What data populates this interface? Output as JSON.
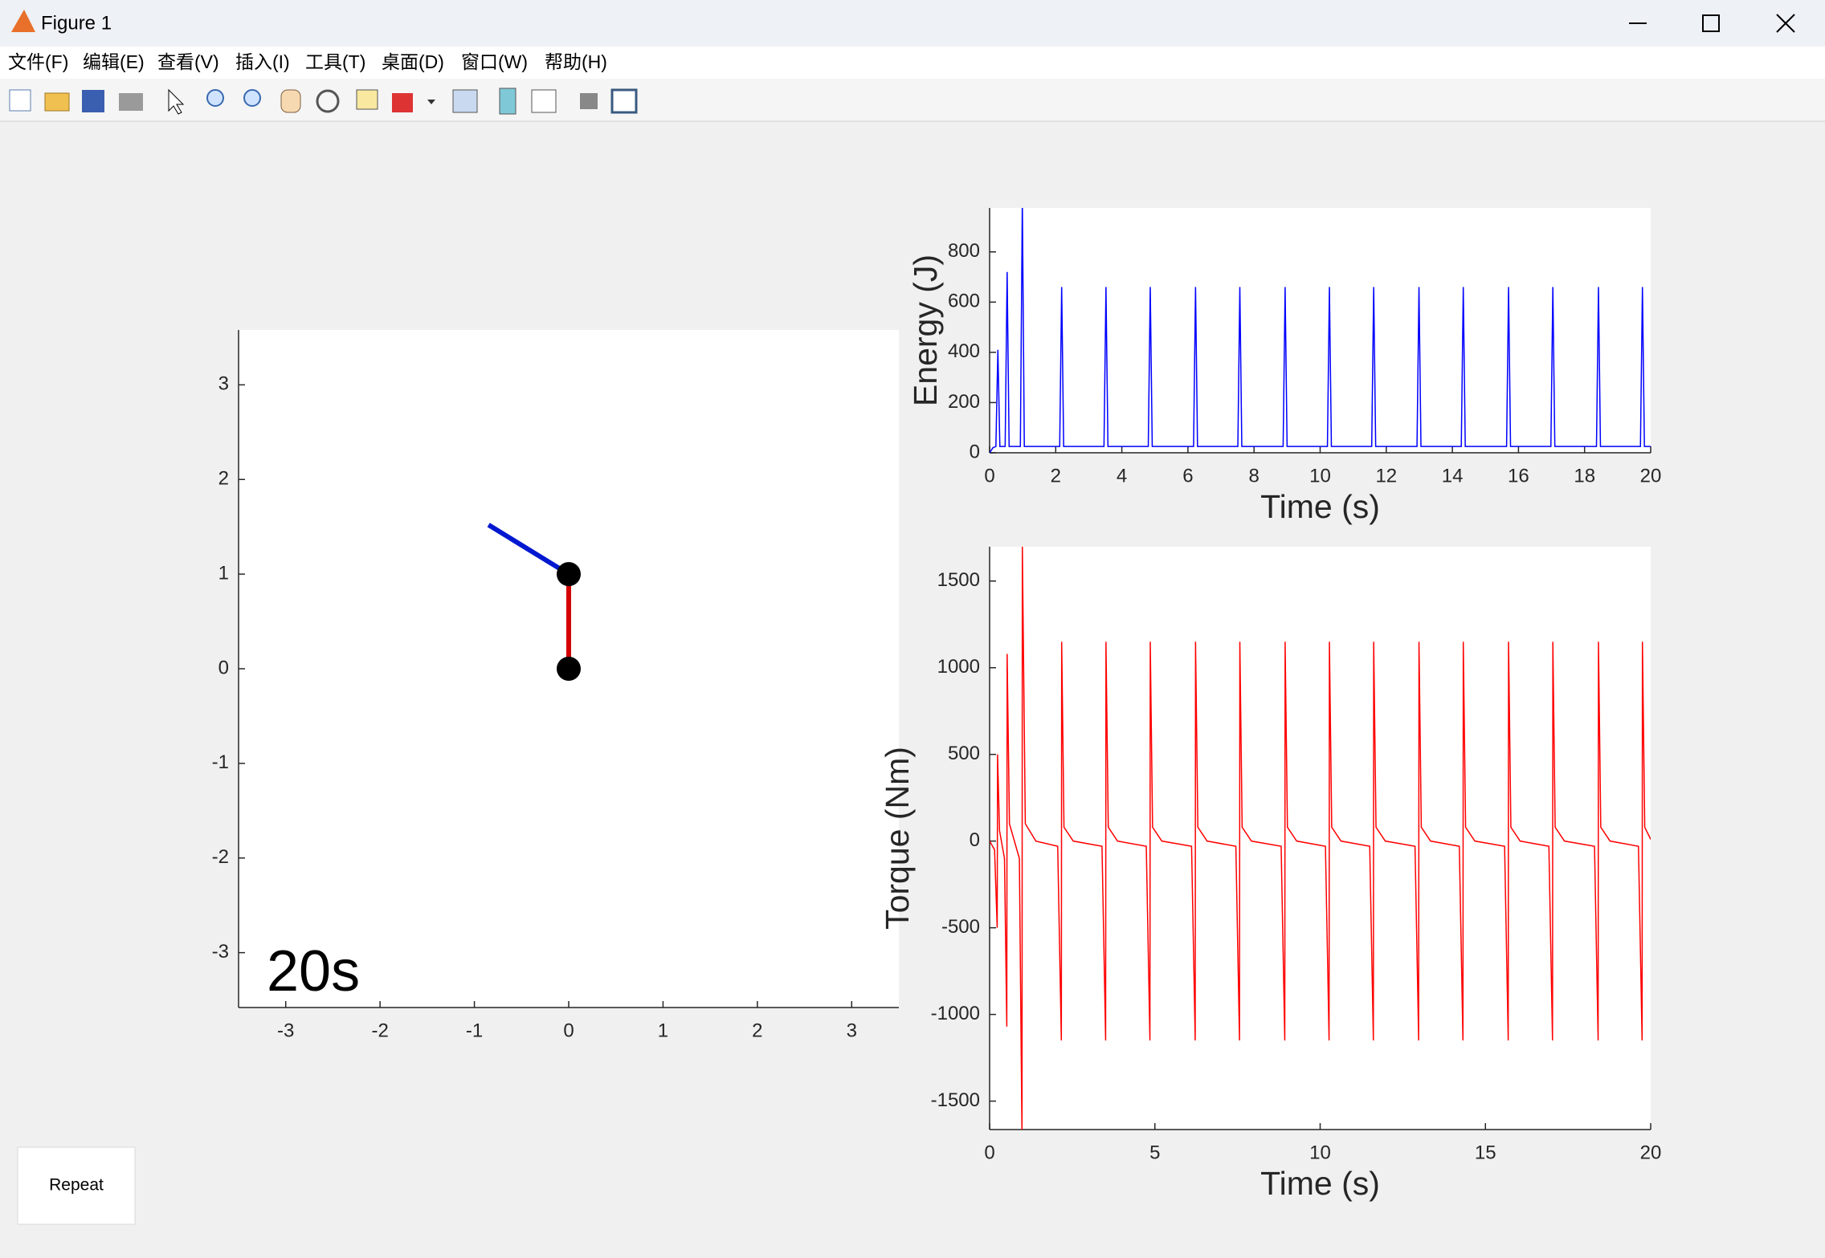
{
  "window": {
    "title": "Figure 1"
  },
  "menu": [
    "文件(F)",
    "编辑(E)",
    "查看(V)",
    "插入(I)",
    "工具(T)",
    "桌面(D)",
    "窗口(W)",
    "帮助(H)"
  ],
  "button": {
    "label": "Repeat"
  },
  "chart_data": [
    {
      "type": "line",
      "annotation": "20s",
      "xlim": [
        -3.5,
        3.5
      ],
      "ylim": [
        -3.58,
        3.58
      ],
      "xticks": [
        -3,
        -2,
        -1,
        0,
        1,
        2,
        3
      ],
      "yticks": [
        -3,
        -2,
        -1,
        0,
        1,
        2,
        3
      ],
      "series": [
        {
          "color": "#d40000",
          "linewidth": 6,
          "x": [
            0,
            0
          ],
          "values": [
            0,
            1
          ]
        },
        {
          "color": "#0018d0",
          "linewidth": 6,
          "x": [
            0,
            -0.85
          ],
          "values": [
            1,
            1.52
          ]
        },
        {
          "color": "#000000",
          "marker": "circle",
          "linestyle": "none",
          "x": [
            0,
            0
          ],
          "values": [
            0,
            1
          ]
        }
      ]
    },
    {
      "type": "line",
      "xlabel": "Time (s)",
      "ylabel": "Energy (J)",
      "xlim": [
        0,
        20
      ],
      "ylim": [
        0,
        975
      ],
      "xticks": [
        0,
        2,
        4,
        6,
        8,
        10,
        12,
        14,
        16,
        18,
        20
      ],
      "yticks": [
        0,
        200,
        400,
        600,
        800
      ],
      "series": [
        {
          "color": "#0000ff",
          "linewidth": 1.5,
          "x": [
            0,
            0.1,
            0.19,
            0.25,
            0.31,
            0.47,
            0.53,
            0.59,
            0.93,
            0.99,
            1.05,
            2.12,
            2.18,
            2.24,
            3.46,
            3.52,
            3.58,
            4.8,
            4.86,
            4.92,
            6.17,
            6.23,
            6.29,
            7.51,
            7.57,
            7.63,
            8.88,
            8.94,
            9.0,
            10.22,
            10.28,
            10.34,
            11.56,
            11.62,
            11.68,
            12.93,
            12.99,
            13.05,
            14.27,
            14.33,
            14.39,
            15.64,
            15.7,
            15.76,
            16.98,
            17.04,
            17.1,
            18.36,
            18.42,
            18.48,
            19.69,
            19.75,
            19.81,
            20
          ],
          "values": [
            0,
            20,
            25,
            410,
            25,
            25,
            720,
            25,
            25,
            1000,
            25,
            25,
            660,
            25,
            25,
            660,
            25,
            25,
            660,
            25,
            25,
            660,
            25,
            25,
            660,
            25,
            25,
            660,
            25,
            25,
            660,
            25,
            25,
            660,
            25,
            25,
            660,
            25,
            25,
            660,
            25,
            25,
            660,
            25,
            25,
            660,
            25,
            25,
            660,
            25,
            25,
            660,
            25,
            25
          ]
        }
      ]
    },
    {
      "type": "line",
      "xlabel": "Time (s)",
      "ylabel": "Torque (Nm)",
      "xlim": [
        0,
        20
      ],
      "ylim": [
        -1664,
        1698
      ],
      "xticks": [
        0,
        5,
        10,
        15,
        20
      ],
      "yticks": [
        -1500,
        -1000,
        -500,
        0,
        500,
        1000,
        1500
      ],
      "series": [
        {
          "color": "#ff0000",
          "linewidth": 1.5,
          "x": [
            0,
            0.15,
            0.23,
            0.24,
            0.3,
            0.45,
            0.52,
            0.53,
            0.6,
            0.9,
            0.98,
            0.99,
            1.08,
            1.4,
            2.06,
            2.17,
            2.18,
            2.25,
            2.53,
            3.4,
            3.51,
            3.52,
            3.59,
            3.87,
            4.74,
            4.85,
            4.86,
            4.93,
            5.21,
            6.11,
            6.22,
            6.23,
            6.3,
            6.58,
            7.45,
            7.56,
            7.57,
            7.64,
            7.92,
            8.82,
            8.93,
            8.94,
            9.01,
            9.29,
            10.16,
            10.27,
            10.28,
            10.35,
            10.63,
            11.5,
            11.61,
            11.62,
            11.69,
            11.97,
            12.87,
            12.98,
            12.99,
            13.06,
            13.34,
            14.21,
            14.32,
            14.33,
            14.4,
            14.68,
            15.58,
            15.69,
            15.7,
            15.77,
            16.05,
            16.92,
            17.03,
            17.04,
            17.11,
            17.39,
            18.3,
            18.41,
            18.42,
            18.49,
            18.77,
            19.63,
            19.74,
            19.75,
            19.82,
            20
          ],
          "values": [
            0,
            -50,
            -500,
            500,
            60,
            -100,
            -1070,
            1080,
            100,
            -100,
            -1700,
            1700,
            100,
            0,
            -30,
            -1150,
            1150,
            80,
            0,
            -30,
            -1150,
            1150,
            80,
            0,
            -30,
            -1150,
            1150,
            80,
            0,
            -30,
            -1150,
            1150,
            80,
            0,
            -30,
            -1150,
            1150,
            80,
            0,
            -30,
            -1150,
            1150,
            80,
            0,
            -30,
            -1150,
            1150,
            80,
            0,
            -30,
            -1150,
            1150,
            80,
            0,
            -30,
            -1150,
            1150,
            80,
            0,
            -30,
            -1150,
            1150,
            80,
            0,
            -30,
            -1150,
            1150,
            80,
            0,
            -30,
            -1150,
            1150,
            80,
            0,
            -30,
            -1150,
            1150,
            80,
            0,
            -30,
            -1150,
            1150,
            80,
            10
          ]
        }
      ]
    }
  ]
}
